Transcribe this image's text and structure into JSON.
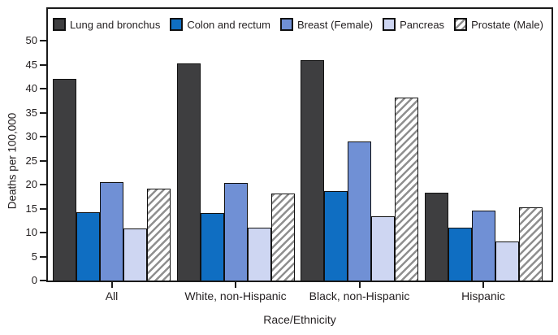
{
  "chart_data": {
    "type": "bar",
    "title": "",
    "categories": [
      "All",
      "White, non-Hispanic",
      "Black, non-Hispanic",
      "Hispanic"
    ],
    "series": [
      {
        "name": "Lung and bronchus",
        "color": "#3e3e40",
        "pattern": "solid",
        "values": [
          42.1,
          45.3,
          46.0,
          18.3
        ]
      },
      {
        "name": "Colon and rectum",
        "color": "#0f6ec2",
        "pattern": "solid",
        "values": [
          14.2,
          14.0,
          18.7,
          11.0
        ]
      },
      {
        "name": "Breast (Female)",
        "color": "#7090d5",
        "pattern": "solid",
        "values": [
          20.5,
          20.4,
          28.9,
          14.5
        ]
      },
      {
        "name": "Pancreas",
        "color": "#ced6f2",
        "pattern": "solid",
        "values": [
          10.9,
          11.0,
          13.4,
          8.2
        ]
      },
      {
        "name": "Prostate (Male)",
        "color": "#8f8f8f",
        "pattern": "diagonal-hatch",
        "hatch_background": "#ffffff",
        "values": [
          19.1,
          18.1,
          38.2,
          15.3
        ]
      }
    ],
    "xlabel": "Race/Ethnicity",
    "ylabel": "Deaths per 100,000",
    "ylim": [
      0,
      50
    ],
    "yticks": [
      0,
      5,
      10,
      15,
      20,
      25,
      30,
      35,
      40,
      45,
      50
    ],
    "grid": false,
    "legend_position": "top-inside",
    "axis_color": "#1a1a1a",
    "bar_outline_color": "#111111",
    "text_color": "#231f20",
    "background_color": "#ffffff"
  }
}
